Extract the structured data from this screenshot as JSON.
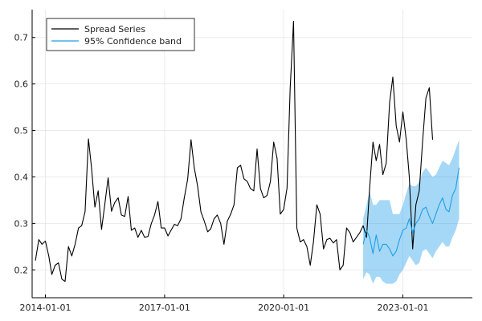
{
  "chart_data": {
    "type": "line",
    "title": "",
    "xlabel": "",
    "ylabel": "",
    "grid": true,
    "legend_position": "top-left",
    "xlim": [
      "2013-09-01",
      "2024-10-01"
    ],
    "ylim": [
      0.14,
      0.76
    ],
    "x_ticks": [
      "2014-01-01",
      "2017-01-01",
      "2020-01-01",
      "2023-01-01"
    ],
    "y_ticks": [
      0.2,
      0.3,
      0.4,
      0.5,
      0.6,
      0.7
    ],
    "y_tick_labels": [
      "0.2",
      "0.3",
      "0.4",
      "0.5",
      "0.6",
      "0.7"
    ],
    "legend": [
      {
        "label": "Spread Series",
        "color": "#000000",
        "kind": "line"
      },
      {
        "label": "95% Confidence band",
        "color": "#1f9ee8",
        "kind": "line"
      }
    ],
    "series": [
      {
        "name": "Spread Series",
        "color": "#000000",
        "start": "2013-10-01",
        "step_months": 1,
        "values": [
          0.22,
          0.265,
          0.255,
          0.262,
          0.23,
          0.19,
          0.21,
          0.215,
          0.18,
          0.175,
          0.25,
          0.23,
          0.255,
          0.29,
          0.295,
          0.325,
          0.482,
          0.42,
          0.335,
          0.37,
          0.287,
          0.34,
          0.398,
          0.326,
          0.345,
          0.355,
          0.318,
          0.315,
          0.358,
          0.285,
          0.29,
          0.27,
          0.285,
          0.27,
          0.272,
          0.3,
          0.318,
          0.347,
          0.29,
          0.29,
          0.273,
          0.285,
          0.298,
          0.295,
          0.31,
          0.355,
          0.395,
          0.48,
          0.42,
          0.38,
          0.325,
          0.305,
          0.282,
          0.288,
          0.31,
          0.318,
          0.3,
          0.255,
          0.305,
          0.32,
          0.34,
          0.42,
          0.425,
          0.396,
          0.39,
          0.375,
          0.37,
          0.46,
          0.375,
          0.355,
          0.36,
          0.39,
          0.475,
          0.44,
          0.32,
          0.33,
          0.376,
          0.59,
          0.735,
          0.29,
          0.26,
          0.265,
          0.25,
          0.21,
          0.26,
          0.34,
          0.32,
          0.245,
          0.265,
          0.268,
          0.258,
          0.265,
          0.2,
          0.21,
          0.29,
          0.28,
          0.26,
          0.27,
          0.28,
          0.295,
          0.27,
          0.375,
          0.475,
          0.435,
          0.47,
          0.405,
          0.43,
          0.56,
          0.615,
          0.51,
          0.475,
          0.54,
          0.48,
          0.4,
          0.245,
          0.34,
          0.37,
          0.475,
          0.57,
          0.592,
          0.48
        ]
      },
      {
        "name": "95% Confidence band",
        "color": "#1f9ee8",
        "start": "2022-01-01",
        "step_months": 1,
        "values": [
          0.255,
          0.285,
          0.27,
          0.235,
          0.275,
          0.24,
          0.255,
          0.255,
          0.245,
          0.23,
          0.24,
          0.265,
          0.285,
          0.29,
          0.31,
          0.28,
          0.3,
          0.31,
          0.33,
          0.335,
          0.315,
          0.3,
          0.32,
          0.34,
          0.355,
          0.33,
          0.325,
          0.36,
          0.375,
          0.42
        ],
        "lower": [
          0.18,
          0.195,
          0.19,
          0.17,
          0.185,
          0.185,
          0.175,
          0.17,
          0.17,
          0.17,
          0.175,
          0.19,
          0.2,
          0.215,
          0.23,
          0.22,
          0.21,
          0.215,
          0.24,
          0.245,
          0.235,
          0.225,
          0.24,
          0.25,
          0.26,
          0.25,
          0.25,
          0.27,
          0.285,
          0.31
        ],
        "upper": [
          0.31,
          0.34,
          0.37,
          0.34,
          0.34,
          0.35,
          0.35,
          0.35,
          0.35,
          0.32,
          0.32,
          0.32,
          0.34,
          0.365,
          0.385,
          0.38,
          0.38,
          0.39,
          0.41,
          0.42,
          0.41,
          0.4,
          0.405,
          0.42,
          0.435,
          0.43,
          0.425,
          0.44,
          0.46,
          0.48
        ]
      }
    ]
  }
}
